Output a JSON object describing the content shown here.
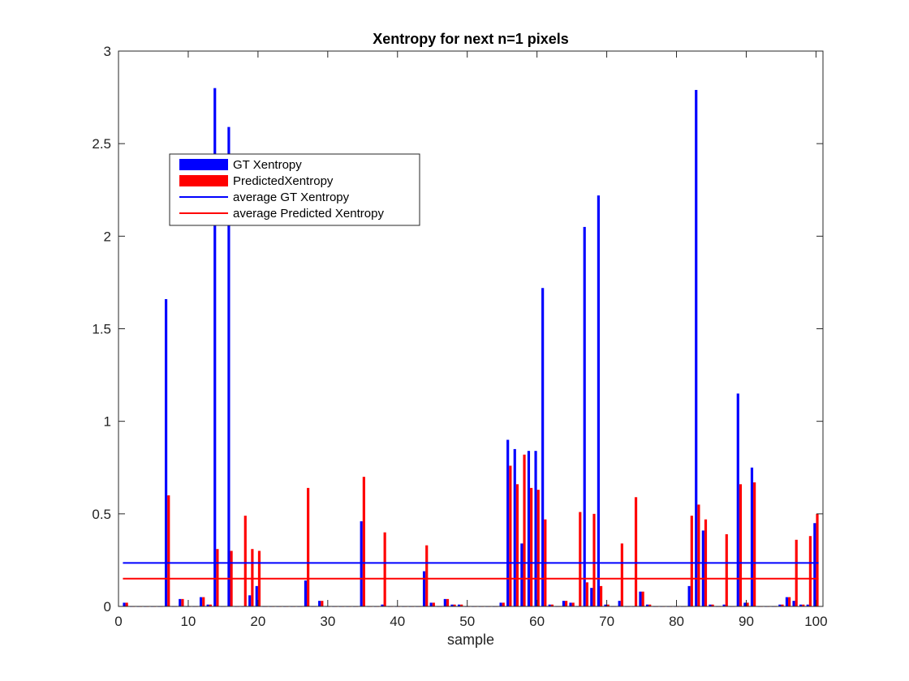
{
  "chart_data": {
    "type": "bar",
    "title": "Xentropy for next n=1 pixels",
    "xlabel": "sample",
    "ylabel": "",
    "xlim": [
      0,
      101
    ],
    "ylim": [
      0,
      3
    ],
    "x_ticks": [
      0,
      10,
      20,
      30,
      40,
      50,
      60,
      70,
      80,
      90,
      100
    ],
    "y_ticks": [
      0,
      0.5,
      1,
      1.5,
      2,
      2.5,
      3
    ],
    "y_tick_labels": [
      "0",
      "0.5",
      "1",
      "1.5",
      "2",
      "2.5",
      "3"
    ],
    "x": [
      1,
      2,
      3,
      4,
      5,
      6,
      7,
      8,
      9,
      10,
      11,
      12,
      13,
      14,
      15,
      16,
      17,
      18,
      19,
      20,
      21,
      22,
      23,
      24,
      25,
      26,
      27,
      28,
      29,
      30,
      31,
      32,
      33,
      34,
      35,
      36,
      37,
      38,
      39,
      40,
      41,
      42,
      43,
      44,
      45,
      46,
      47,
      48,
      49,
      50,
      51,
      52,
      53,
      54,
      55,
      56,
      57,
      58,
      59,
      60,
      61,
      62,
      63,
      64,
      65,
      66,
      67,
      68,
      69,
      70,
      71,
      72,
      73,
      74,
      75,
      76,
      77,
      78,
      79,
      80,
      81,
      82,
      83,
      84,
      85,
      86,
      87,
      88,
      89,
      90,
      91,
      92,
      93,
      94,
      95,
      96,
      97,
      98,
      99,
      100
    ],
    "series": [
      {
        "name": "GT Xentropy",
        "color": "#0000ff",
        "values": [
          0.02,
          0.0,
          0.0,
          0.0,
          0.0,
          0.0,
          1.66,
          0.0,
          0.04,
          0.0,
          0.0,
          0.05,
          0.01,
          2.8,
          0.0,
          2.59,
          0.0,
          0.0,
          0.06,
          0.11,
          0.0,
          0.0,
          0.0,
          0.0,
          0.0,
          0.0,
          0.14,
          0.0,
          0.03,
          0.0,
          0.0,
          0.0,
          0.0,
          0.0,
          0.46,
          0.0,
          0.0,
          0.01,
          0.0,
          0.0,
          0.0,
          0.0,
          0.0,
          0.19,
          0.02,
          0.0,
          0.04,
          0.01,
          0.01,
          0.0,
          0.0,
          0.0,
          0.0,
          0.0,
          0.02,
          0.9,
          0.85,
          0.34,
          0.84,
          0.84,
          1.72,
          0.01,
          0.0,
          0.03,
          0.02,
          0.0,
          2.05,
          0.1,
          2.22,
          0.01,
          0.0,
          0.03,
          0.0,
          0.0,
          0.08,
          0.01,
          0.0,
          0.0,
          0.0,
          0.0,
          0.0,
          0.11,
          2.79,
          0.41,
          0.01,
          0.0,
          0.01,
          0.0,
          1.15,
          0.02,
          0.75,
          0.0,
          0.0,
          0.0,
          0.01,
          0.05,
          0.03,
          0.01,
          0.01,
          0.45
        ]
      },
      {
        "name": "PredictedXentropy",
        "color": "#ff0000",
        "values": [
          0.02,
          0.0,
          0.0,
          0.0,
          0.0,
          0.0,
          0.6,
          0.0,
          0.04,
          0.0,
          0.0,
          0.05,
          0.01,
          0.31,
          0.0,
          0.3,
          0.0,
          0.49,
          0.31,
          0.3,
          0.0,
          0.0,
          0.0,
          0.0,
          0.0,
          0.0,
          0.64,
          0.0,
          0.03,
          0.0,
          0.0,
          0.0,
          0.0,
          0.0,
          0.7,
          0.0,
          0.0,
          0.4,
          0.0,
          0.0,
          0.0,
          0.0,
          0.0,
          0.33,
          0.02,
          0.0,
          0.04,
          0.01,
          0.01,
          0.0,
          0.0,
          0.0,
          0.0,
          0.0,
          0.02,
          0.76,
          0.66,
          0.82,
          0.64,
          0.63,
          0.47,
          0.01,
          0.0,
          0.03,
          0.02,
          0.51,
          0.13,
          0.5,
          0.11,
          0.01,
          0.0,
          0.34,
          0.0,
          0.59,
          0.08,
          0.01,
          0.0,
          0.0,
          0.0,
          0.0,
          0.0,
          0.49,
          0.55,
          0.47,
          0.01,
          0.0,
          0.39,
          0.0,
          0.66,
          0.02,
          0.67,
          0.0,
          0.0,
          0.0,
          0.01,
          0.05,
          0.36,
          0.01,
          0.38,
          0.5
        ]
      }
    ],
    "reference_lines": [
      {
        "name": "average GT Xentropy",
        "color": "#0000ff",
        "y": 0.235,
        "x_range": [
          1,
          100
        ]
      },
      {
        "name": "average Predicted Xentropy",
        "color": "#ff0000",
        "y": 0.15,
        "x_range": [
          1,
          100
        ]
      }
    ],
    "grid": false,
    "legend_position": "upper-left"
  },
  "legend": {
    "entries": [
      {
        "label": "GT Xentropy",
        "color": "#0000ff",
        "kind": "bar"
      },
      {
        "label": "PredictedXentropy",
        "color": "#ff0000",
        "kind": "bar"
      },
      {
        "label": "average GT Xentropy",
        "color": "#0000ff",
        "kind": "line"
      },
      {
        "label": "average Predicted Xentropy",
        "color": "#ff0000",
        "kind": "line"
      }
    ]
  }
}
